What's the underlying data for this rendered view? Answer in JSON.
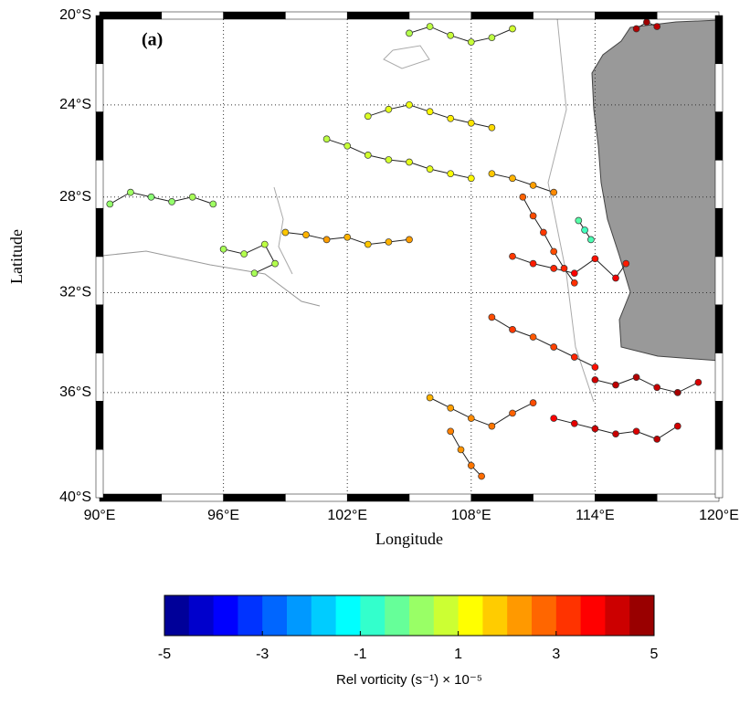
{
  "chart_data": {
    "type": "scatter",
    "title": "(a)",
    "xlabel": "Longitude",
    "ylabel": "Latitude",
    "projection": "mercator",
    "colormap": "jet",
    "grid": true,
    "xlim": [
      90,
      120
    ],
    "ylim": [
      -40,
      -20
    ],
    "xticks": [
      {
        "value": 90,
        "label": "90°E"
      },
      {
        "value": 96,
        "label": "96°E"
      },
      {
        "value": 102,
        "label": "102°E"
      },
      {
        "value": 108,
        "label": "108°E"
      },
      {
        "value": 114,
        "label": "114°E"
      },
      {
        "value": 120,
        "label": "120°E"
      }
    ],
    "yticks": [
      {
        "value": -20,
        "label": "20°S"
      },
      {
        "value": -24,
        "label": "24°S"
      },
      {
        "value": -28,
        "label": "28°S"
      },
      {
        "value": -32,
        "label": "32°S"
      },
      {
        "value": -36,
        "label": "36°S"
      },
      {
        "value": -40,
        "label": "40°S"
      }
    ],
    "series": [
      {
        "x": [
          90.5,
          91.5,
          92.5,
          93.5,
          94.5,
          95.5
        ],
        "y": [
          -28.3,
          -27.8,
          -28.0,
          -28.2,
          -28.0,
          -28.3
        ],
        "c": [
          0.2,
          0.3,
          0.1,
          0.2,
          0.4,
          0.3
        ]
      },
      {
        "x": [
          96,
          97,
          98,
          98.5,
          97.5
        ],
        "y": [
          -30.2,
          -30.4,
          -30.0,
          -30.8,
          -31.2
        ],
        "c": [
          0.4,
          0.5,
          0.6,
          0.5,
          0.4
        ]
      },
      {
        "x": [
          99,
          100,
          101,
          102,
          103,
          104,
          105
        ],
        "y": [
          -29.5,
          -29.6,
          -29.8,
          -29.7,
          -30.0,
          -29.9,
          -29.8
        ],
        "c": [
          1.8,
          2,
          2.2,
          2,
          1.8,
          2,
          2.2
        ]
      },
      {
        "x": [
          101,
          102,
          103,
          104,
          105,
          106,
          107,
          108
        ],
        "y": [
          -25.5,
          -25.8,
          -26.2,
          -26.4,
          -26.5,
          -26.8,
          -27,
          -27.2
        ],
        "c": [
          0.6,
          0.7,
          0.8,
          0.8,
          1,
          1,
          1.2,
          1.3
        ]
      },
      {
        "x": [
          103,
          104,
          105,
          106,
          107,
          108,
          109
        ],
        "y": [
          -24.5,
          -24.2,
          -24.0,
          -24.3,
          -24.6,
          -24.8,
          -25
        ],
        "c": [
          0.9,
          1,
          1.1,
          1.3,
          1.4,
          1.5,
          1.6
        ]
      },
      {
        "x": [
          105,
          106,
          107,
          108,
          109,
          110
        ],
        "y": [
          -20.8,
          -20.5,
          -20.9,
          -21.2,
          -21.0,
          -20.6
        ],
        "c": [
          0.5,
          0.6,
          0.7,
          0.7,
          0.6,
          0.8
        ]
      },
      {
        "x": [
          110,
          111,
          112,
          113,
          114,
          115,
          115.5
        ],
        "y": [
          -30.5,
          -30.8,
          -31,
          -31.2,
          -30.6,
          -31.4,
          -30.8
        ],
        "c": [
          3.2,
          3.5,
          3.4,
          3.8,
          3.6,
          3.9,
          3.5
        ]
      },
      {
        "x": [
          110.5,
          111,
          111.5,
          112,
          112.5,
          113
        ],
        "y": [
          -28,
          -28.8,
          -29.5,
          -30.3,
          -31,
          -31.6
        ],
        "c": [
          2.8,
          3,
          3.2,
          3,
          3.4,
          3.3
        ]
      },
      {
        "x": [
          109,
          110,
          111,
          112,
          113,
          114
        ],
        "y": [
          -33,
          -33.5,
          -33.8,
          -34.2,
          -34.6,
          -35
        ],
        "c": [
          3,
          3.2,
          2.9,
          3.1,
          3.4,
          3.6
        ]
      },
      {
        "x": [
          106,
          107,
          108,
          109,
          110,
          111
        ],
        "y": [
          -36.2,
          -36.6,
          -37,
          -37.3,
          -36.8,
          -36.4
        ],
        "c": [
          2,
          2.2,
          2.4,
          2.6,
          2.8,
          3
        ]
      },
      {
        "x": [
          112,
          113,
          114,
          115,
          116,
          117,
          118
        ],
        "y": [
          -37,
          -37.2,
          -37.4,
          -37.6,
          -37.5,
          -37.8,
          -37.3
        ],
        "c": [
          3.8,
          4,
          4.2,
          4.3,
          4.1,
          4.4,
          4.2
        ]
      },
      {
        "x": [
          114,
          115,
          116,
          117,
          118,
          119
        ],
        "y": [
          -35.5,
          -35.7,
          -35.4,
          -35.8,
          -36,
          -35.6
        ],
        "c": [
          4.2,
          4.4,
          4.5,
          4.3,
          4.6,
          4.1
        ]
      },
      {
        "x": [
          116,
          116.5,
          117
        ],
        "y": [
          -20.6,
          -20.3,
          -20.5
        ],
        "c": [
          4.5,
          4.7,
          4.4
        ]
      },
      {
        "x": [
          107,
          107.5,
          108,
          108.5
        ],
        "y": [
          -37.5,
          -38.2,
          -38.8,
          -39.2
        ],
        "c": [
          2.5,
          2.3,
          2.6,
          2.7
        ]
      },
      {
        "x": [
          109,
          110,
          111,
          112
        ],
        "y": [
          -27,
          -27.2,
          -27.5,
          -27.8
        ],
        "c": [
          1.8,
          2,
          2.2,
          2.4
        ]
      },
      {
        "x": [
          113.2,
          113.5,
          113.8
        ],
        "y": [
          -29,
          -29.4,
          -29.8
        ],
        "c": [
          -0.4,
          -0.6,
          -0.5
        ]
      }
    ],
    "colorbar": {
      "clim": [
        -5,
        5
      ],
      "levels": 20,
      "ticks": [
        -5,
        -3,
        -1,
        1,
        3,
        5
      ],
      "label": "Rel vorticity (s⁻¹) × 10⁻⁵"
    }
  }
}
